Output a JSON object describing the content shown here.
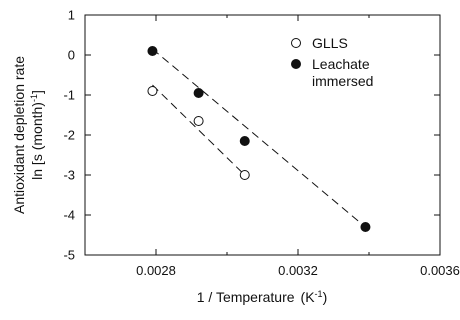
{
  "chart_data": {
    "type": "scatter",
    "xlabel": "1 / Temperature",
    "xlabel_unit": "(K",
    "xlabel_unit_exp": "-1",
    "xlabel_unit_close": ")",
    "ylabel_line1": "Antioxidant depletion rate",
    "ylabel_line2": "ln [s (month)",
    "ylabel_line2_exp": "-1",
    "ylabel_line2_close": "]",
    "xlim": [
      0.0026,
      0.0036
    ],
    "ylim": [
      -5,
      1
    ],
    "x_ticks": [
      0.0028,
      0.0032,
      0.0036
    ],
    "x_tick_labels": [
      "0.0028",
      "0.0032",
      "0.0036"
    ],
    "y_ticks": [
      1,
      0,
      -1,
      -2,
      -3,
      -4,
      -5
    ],
    "y_tick_labels": [
      "1",
      "0",
      "-1",
      "-2",
      "-3",
      "-4",
      "-5"
    ],
    "grid": false,
    "legend_position": "top-right",
    "series": [
      {
        "name": "GLLS",
        "marker": "open-circle",
        "color": "#111111",
        "x": [
          0.00279,
          0.00292,
          0.00305
        ],
        "y": [
          -0.9,
          -1.65,
          -3.0
        ],
        "fit": [
          [
            0.00279,
            -0.75
          ],
          [
            0.00305,
            -3.0
          ]
        ]
      },
      {
        "name": "Leachate immersed",
        "name_line1": "Leachate",
        "name_line2": "immersed",
        "marker": "filled-circle",
        "color": "#111111",
        "x": [
          0.00279,
          0.00292,
          0.00305,
          0.00339
        ],
        "y": [
          0.1,
          -0.95,
          -2.15,
          -4.3
        ],
        "fit": [
          [
            0.00279,
            0.15
          ],
          [
            0.00339,
            -4.3
          ]
        ]
      }
    ]
  }
}
